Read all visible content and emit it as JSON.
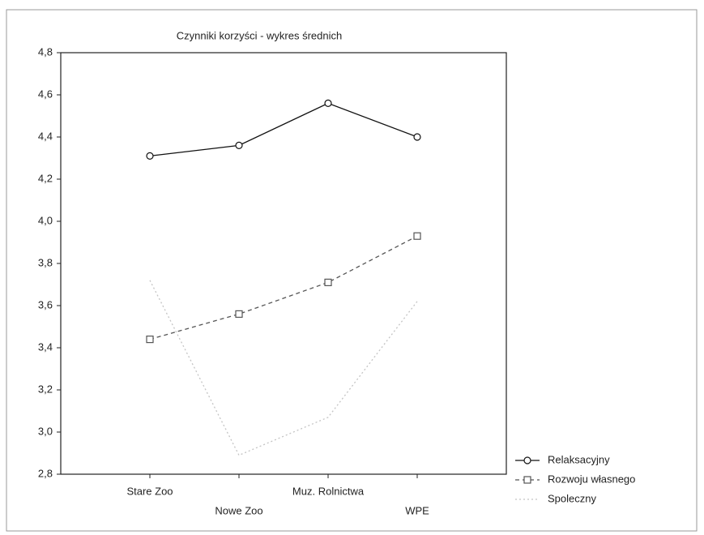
{
  "chart_data": {
    "type": "line",
    "title": "Czynniki korzyści - wykres średnich",
    "categories": [
      "Stare Zoo",
      "Nowe Zoo",
      "Muz. Rolnictwa",
      "WPE"
    ],
    "series": [
      {
        "name": "Relaksacyjny",
        "color": "#111111",
        "marker": "circle",
        "dash": "none",
        "values": [
          4.31,
          4.36,
          4.56,
          4.4
        ]
      },
      {
        "name": "Rozwoju własnego",
        "color": "#555555",
        "marker": "square",
        "dash": "5 4",
        "values": [
          3.44,
          3.56,
          3.71,
          3.93
        ]
      },
      {
        "name": "Spoleczny",
        "color": "#c4c4c4",
        "marker": "none",
        "dash": "2 3",
        "values": [
          3.72,
          2.89,
          3.07,
          3.62
        ]
      }
    ],
    "ylim": [
      2.8,
      4.8
    ],
    "yticks": [
      {
        "value": 2.8,
        "label": "2,8"
      },
      {
        "value": 3.0,
        "label": "3,0"
      },
      {
        "value": 3.2,
        "label": "3,2"
      },
      {
        "value": 3.4,
        "label": "3,4"
      },
      {
        "value": 3.6,
        "label": "3,6"
      },
      {
        "value": 3.8,
        "label": "3,8"
      },
      {
        "value": 4.0,
        "label": "4,0"
      },
      {
        "value": 4.2,
        "label": "4,2"
      },
      {
        "value": 4.4,
        "label": "4,4"
      },
      {
        "value": 4.6,
        "label": "4,6"
      },
      {
        "value": 4.8,
        "label": "4,8"
      }
    ],
    "grid": false
  }
}
